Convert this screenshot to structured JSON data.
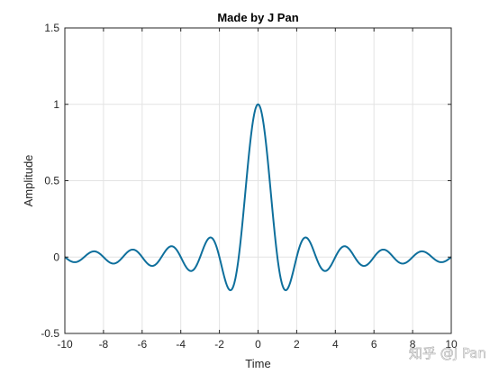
{
  "watermark": "知乎 @J Pan",
  "chart_data": {
    "type": "line",
    "title": "Made by J Pan",
    "xlabel": "Time",
    "ylabel": "Amplitude",
    "xlim": [
      -10,
      10
    ],
    "ylim": [
      -0.5,
      1.5
    ],
    "xticks": [
      -10,
      -8,
      -6,
      -4,
      -2,
      0,
      2,
      4,
      6,
      8,
      10
    ],
    "yticks": [
      -0.5,
      0,
      0.5,
      1,
      1.5
    ],
    "grid": true,
    "legend": "none",
    "series": [
      {
        "function": "sinc",
        "color": "#0e6f9c",
        "x": [
          -10,
          -9.6,
          -9.2,
          -8.8,
          -8.4,
          -8,
          -7.6,
          -7.2,
          -6.8,
          -6.4,
          -6,
          -5.6,
          -5.2,
          -4.8,
          -4.4,
          -4,
          -3.6,
          -3.2,
          -2.8,
          -2.4,
          -2,
          -1.6,
          -1.2,
          -0.8,
          -0.4,
          0,
          0.4,
          0.8,
          1.2,
          1.6,
          2,
          2.4,
          2.8,
          3.2,
          3.6,
          4,
          4.4,
          4.8,
          5.2,
          5.6,
          6,
          6.4,
          6.8,
          7.2,
          7.6,
          8,
          8.4,
          8.8,
          9.2,
          9.6,
          10
        ],
        "y": [
          0,
          -0.031,
          -0.033,
          0.022,
          0.036,
          0,
          -0.038,
          -0.026,
          0.027,
          0.047,
          0,
          -0.054,
          -0.036,
          0.039,
          0.07,
          0,
          -0.088,
          -0.058,
          0.067,
          0.126,
          0,
          -0.189,
          -0.156,
          0.234,
          0.757,
          1,
          0.757,
          0.234,
          -0.156,
          -0.189,
          0,
          0.126,
          0.067,
          -0.058,
          -0.088,
          0,
          0.07,
          0.039,
          -0.036,
          -0.054,
          0,
          0.047,
          0.027,
          -0.026,
          -0.038,
          0,
          0.036,
          0.022,
          -0.033,
          -0.031,
          0
        ]
      }
    ]
  }
}
